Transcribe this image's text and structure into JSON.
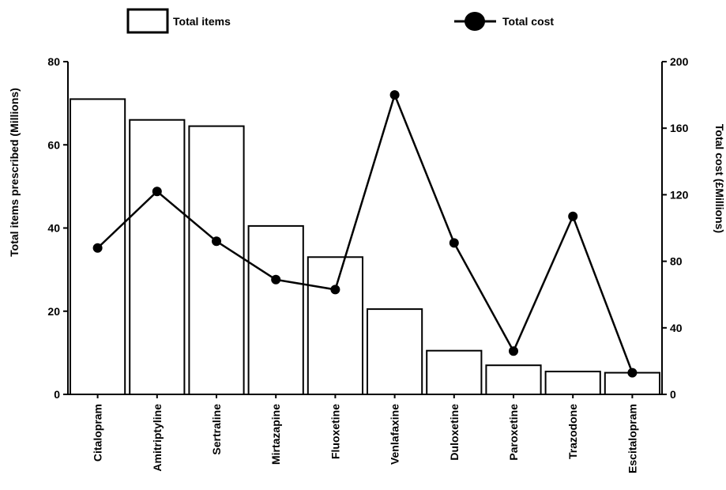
{
  "chart_data": {
    "type": "bar",
    "categories": [
      "Citalopram",
      "Amitriptyline",
      "Sertraline",
      "Mirtazapine",
      "Fluoxetine",
      "Venlafaxine",
      "Duloxetine",
      "Paroxetine",
      "Trazodone",
      "Escitalopram"
    ],
    "series": [
      {
        "name": "Total items",
        "type": "bar",
        "axis": "left",
        "values": [
          71,
          66,
          64.5,
          40.5,
          33,
          20.5,
          10.5,
          7,
          5.5,
          5.2
        ]
      },
      {
        "name": "Total cost",
        "type": "line",
        "axis": "right",
        "values": [
          88,
          122,
          92,
          69,
          63,
          180,
          91,
          26,
          107,
          13
        ]
      }
    ],
    "ylabel": "Total items prescribed (Millions)",
    "ylabel_right": "Total cost (£Millions)",
    "ylim": [
      0,
      80
    ],
    "ylim_right": [
      0,
      200
    ],
    "yticks": [
      0,
      20,
      40,
      60,
      80
    ],
    "yticks_right": [
      0,
      40,
      80,
      120,
      160,
      200
    ],
    "legend_placement": "top",
    "grid": false
  }
}
